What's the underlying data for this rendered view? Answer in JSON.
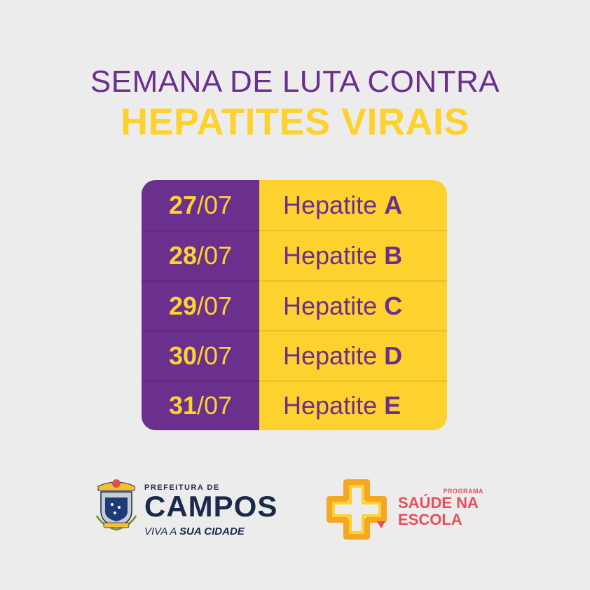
{
  "title": {
    "line1": "SEMANA DE LUTA CONTRA",
    "line2": "HEPATITES VIRAIS"
  },
  "schedule": [
    {
      "day": "27",
      "month": "/07",
      "name": "Hepatite",
      "letter": "A"
    },
    {
      "day": "28",
      "month": "/07",
      "name": "Hepatite",
      "letter": "B"
    },
    {
      "day": "29",
      "month": "/07",
      "name": "Hepatite",
      "letter": "C"
    },
    {
      "day": "30",
      "month": "/07",
      "name": "Hepatite",
      "letter": "D"
    },
    {
      "day": "31",
      "month": "/07",
      "name": "Hepatite",
      "letter": "E"
    }
  ],
  "campos_logo": {
    "prefix": "PREFEITURA DE",
    "name": "CAMPOS",
    "tagline_start": "VIVA A ",
    "tagline_bold": "SUA CIDADE"
  },
  "saude_logo": {
    "program": "PROGRAMA",
    "line1": "SAÚDE NA",
    "line2": "ESCOLA"
  },
  "colors": {
    "purple": "#6b2f8e",
    "yellow": "#fdd22f",
    "background": "#ececec",
    "navy": "#1b2a4a",
    "coral": "#e94e5b"
  }
}
